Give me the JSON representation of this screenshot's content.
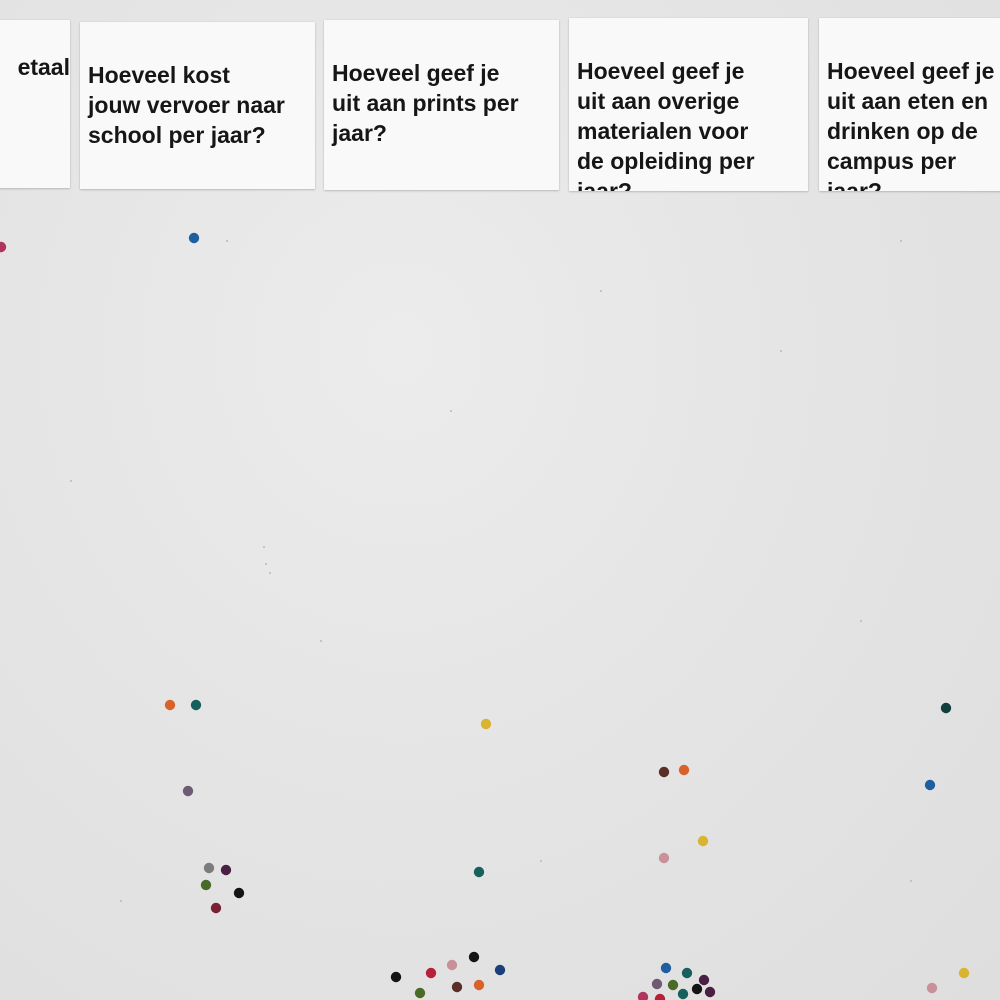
{
  "cards": [
    {
      "text": "etaal"
    },
    {
      "text": "Hoeveel kost\njouw vervoer naar\nschool per jaar?"
    },
    {
      "text": "Hoeveel geef je\nuit aan prints per\njaar?"
    },
    {
      "text": "Hoeveel geef je\nuit aan overige\nmaterialen voor\nde opleiding per\njaar?"
    },
    {
      "text": "Hoeveel geef je\nuit aan eten en\ndrinken op de\ncampus per jaar?"
    }
  ],
  "dot_colors": {
    "navy": "#1a3f7a",
    "blue": "#1f5fa0",
    "orange": "#d9622b",
    "teal": "#17605e",
    "mauve": "#6e5a72",
    "yellow": "#d8b430",
    "brown": "#5a2f26",
    "pink": "#c9909a",
    "grey": "#7c7c7c",
    "plum": "#4a1f44",
    "olive": "#4a6a2a",
    "maroon": "#7a2030",
    "black": "#141414",
    "red": "#b8203a",
    "magenta": "#b03460",
    "dkteal": "#0f3f3e"
  }
}
